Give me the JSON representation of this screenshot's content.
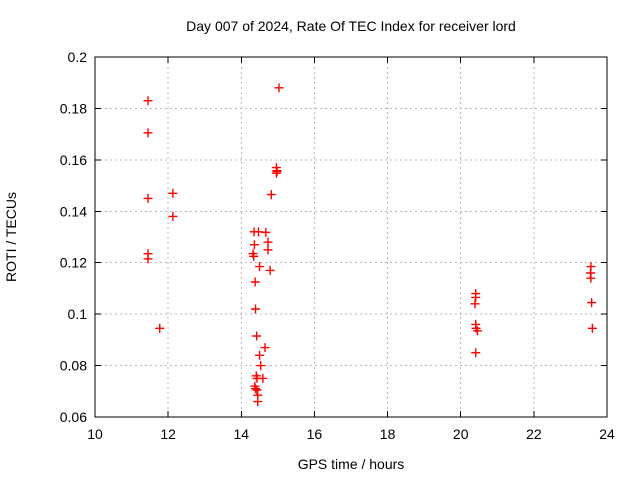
{
  "window": {
    "background": "#ffffff",
    "foreground": "#000000"
  },
  "chart_data": {
    "type": "scatter",
    "title": "Day 007 of 2024, Rate Of TEC Index for receiver lord",
    "xlabel": "GPS time / hours",
    "ylabel": "ROTI / TECUs",
    "xlim": [
      10,
      24
    ],
    "ylim": [
      0.06,
      0.2
    ],
    "xticks": {
      "values": [
        10,
        12,
        14,
        16,
        18,
        20,
        22,
        24
      ],
      "labels": [
        "10",
        "12",
        "14",
        "16",
        "18",
        "20",
        "22",
        "24"
      ]
    },
    "yticks": {
      "values": [
        0.06,
        0.08,
        0.1,
        0.12,
        0.14,
        0.16,
        0.18,
        0.2
      ],
      "labels": [
        "0.06",
        "0.08",
        "0.1",
        "0.12",
        "0.14",
        "0.16",
        "0.18",
        "0.2"
      ]
    },
    "grid": {
      "visible": true,
      "style": "dashed",
      "color": "#b8b8b8"
    },
    "frame_color": "#000000",
    "legend": "none",
    "marker": {
      "shape": "plus",
      "size": 9,
      "stroke_width": 1.4,
      "color": "#ff0000"
    },
    "series": [
      {
        "name": "ROTI",
        "points": [
          [
            11.45,
            0.183
          ],
          [
            11.45,
            0.1705
          ],
          [
            11.45,
            0.145
          ],
          [
            11.45,
            0.1235
          ],
          [
            11.45,
            0.1215
          ],
          [
            11.77,
            0.0945
          ],
          [
            12.13,
            0.147
          ],
          [
            12.13,
            0.138
          ],
          [
            14.32,
            0.1235
          ],
          [
            14.34,
            0.1225
          ],
          [
            14.35,
            0.132
          ],
          [
            14.36,
            0.127
          ],
          [
            14.37,
            0.072
          ],
          [
            14.38,
            0.1125
          ],
          [
            14.39,
            0.102
          ],
          [
            14.39,
            0.071
          ],
          [
            14.41,
            0.076
          ],
          [
            14.42,
            0.0915
          ],
          [
            14.43,
            0.075
          ],
          [
            14.43,
            0.0705
          ],
          [
            14.45,
            0.0685
          ],
          [
            14.45,
            0.066
          ],
          [
            14.47,
            0.132
          ],
          [
            14.5,
            0.1185
          ],
          [
            14.5,
            0.084
          ],
          [
            14.53,
            0.08
          ],
          [
            14.59,
            0.075
          ],
          [
            14.65,
            0.087
          ],
          [
            14.67,
            0.1318
          ],
          [
            14.73,
            0.128
          ],
          [
            14.73,
            0.125
          ],
          [
            14.79,
            0.117
          ],
          [
            14.82,
            0.1465
          ],
          [
            14.96,
            0.157
          ],
          [
            14.97,
            0.1558
          ],
          [
            14.98,
            0.1555
          ],
          [
            14.96,
            0.1548
          ],
          [
            15.03,
            0.188
          ],
          [
            20.39,
            0.104
          ],
          [
            20.41,
            0.108
          ],
          [
            20.41,
            0.1065
          ],
          [
            20.41,
            0.096
          ],
          [
            20.42,
            0.0945
          ],
          [
            20.46,
            0.0935
          ],
          [
            20.41,
            0.085
          ],
          [
            23.55,
            0.116
          ],
          [
            23.56,
            0.1185
          ],
          [
            23.56,
            0.114
          ],
          [
            23.58,
            0.1045
          ],
          [
            23.6,
            0.0945
          ]
        ]
      }
    ]
  }
}
